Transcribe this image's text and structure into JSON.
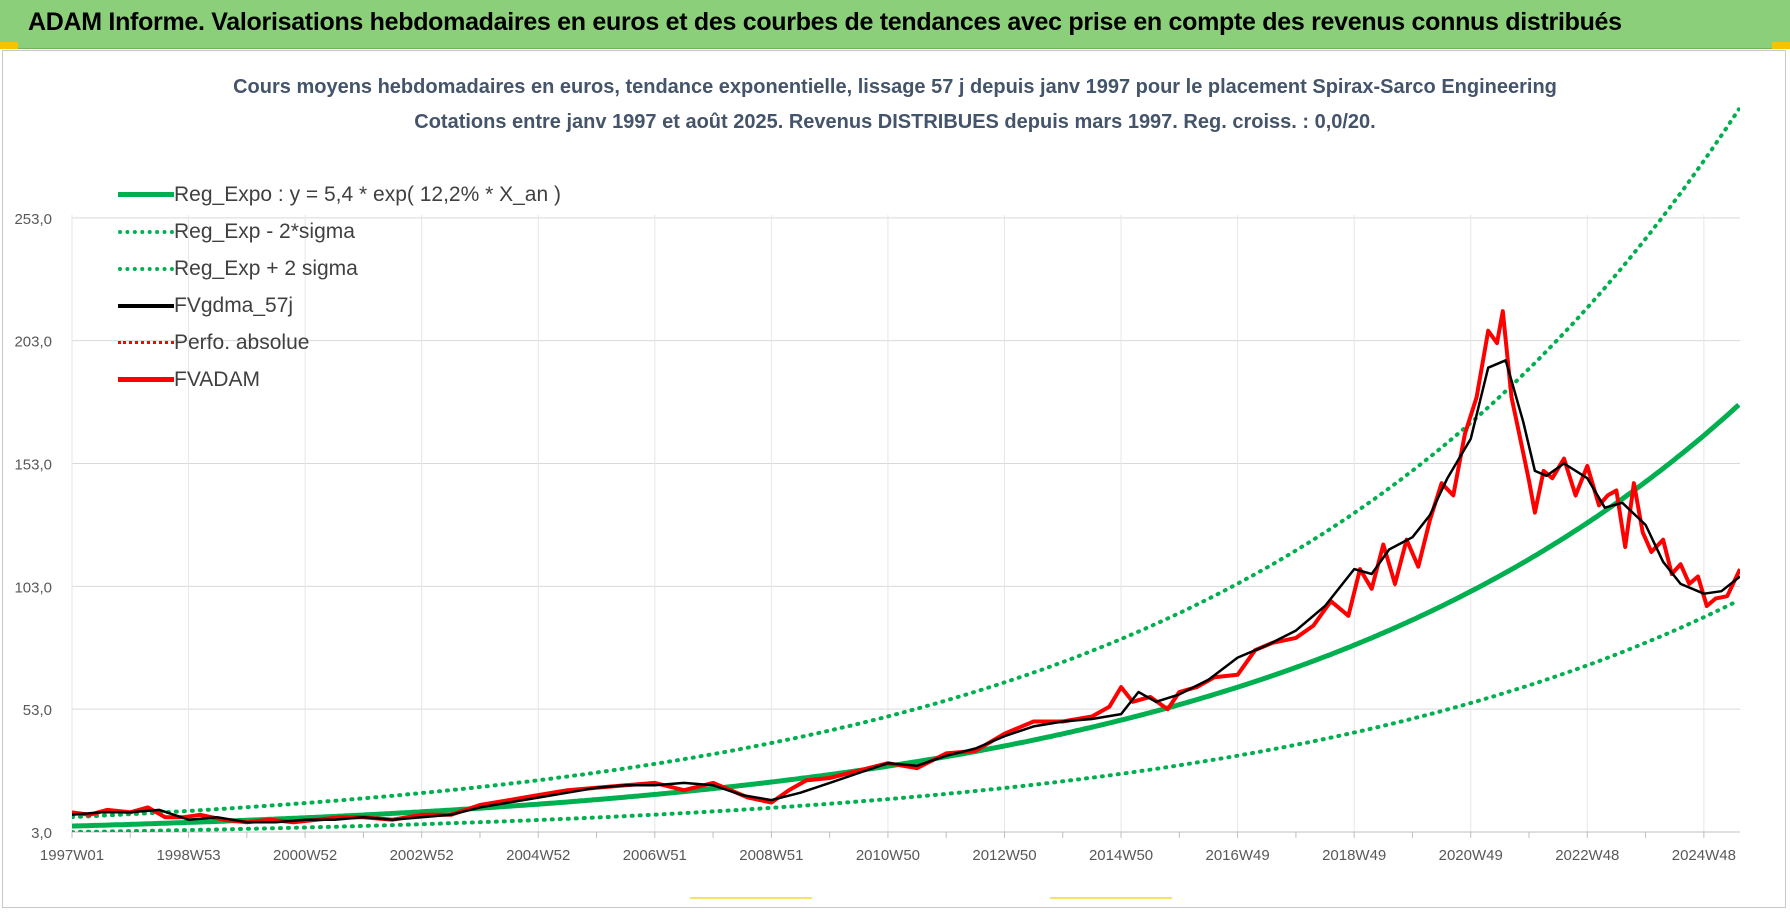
{
  "header": {
    "title": "ADAM Informe. Valorisations hebdomadaires en euros et des courbes de tendances avec prise en compte des revenus connus distribués"
  },
  "chart_data": {
    "type": "line",
    "title": "Cours moyens hebdomadaires en euros, tendance exponentielle, lissage 57 j depuis janv 1997 pour le placement Spirax-Sarco Engineering",
    "subtitle": "Cotations entre janv 1997 et août 2025. Revenus DISTRIBUES depuis mars 1997. Reg. croiss. : 0,0/20.",
    "xlabel": "",
    "ylabel": "",
    "ylim": [
      3,
      303
    ],
    "yticks": [
      "3,0",
      "53,0",
      "103,0",
      "153,0",
      "203,0",
      "253,0"
    ],
    "ytick_values": [
      3,
      53,
      103,
      153,
      203,
      253
    ],
    "xticks": [
      "1997W01",
      "1998W53",
      "2000W52",
      "2002W52",
      "2004W52",
      "2006W51",
      "2008W51",
      "2010W50",
      "2012W50",
      "2014W50",
      "2016W49",
      "2018W49",
      "2020W49",
      "2022W48",
      "2024W48"
    ],
    "xtick_years": [
      1997.0,
      1999.0,
      2001.0,
      2003.0,
      2005.0,
      2007.0,
      2009.0,
      2011.0,
      2013.0,
      2015.0,
      2017.0,
      2019.0,
      2021.0,
      2023.0,
      2025.0
    ],
    "xlim": [
      1997.0,
      2025.62
    ],
    "grid": true,
    "legend_position": "top-left",
    "colors": {
      "green": "#00b050",
      "black": "#000000",
      "red": "#ff0000"
    },
    "series": [
      {
        "name": "Reg_Expo : y = 5,4 * exp( 12,2% *  X_an )",
        "style": "solid-green",
        "formula": {
          "a": 5.4,
          "b": 0.122,
          "factor": 1.0
        }
      },
      {
        "name": "Reg_Exp - 2*sigma",
        "style": "dot-green",
        "formula": {
          "a": 5.4,
          "b": 0.122,
          "factor": 0.55
        }
      },
      {
        "name": "Reg_Exp + 2 sigma",
        "style": "dot-green",
        "formula": {
          "a": 5.4,
          "b": 0.122,
          "factor": 1.68
        }
      },
      {
        "name": "FVgdma_57j",
        "style": "solid-black",
        "x": [
          1997.0,
          1997.5,
          1998.0,
          1998.5,
          1999.0,
          1999.5,
          2000.0,
          2000.5,
          2001.0,
          2001.5,
          2002.0,
          2002.5,
          2003.0,
          2003.5,
          2004.0,
          2004.5,
          2005.0,
          2005.5,
          2006.0,
          2006.5,
          2007.0,
          2007.5,
          2008.0,
          2008.5,
          2009.0,
          2009.5,
          2010.0,
          2010.5,
          2011.0,
          2011.5,
          2012.0,
          2012.5,
          2013.0,
          2013.5,
          2014.0,
          2014.5,
          2015.0,
          2015.3,
          2015.6,
          2016.0,
          2016.5,
          2017.0,
          2017.5,
          2018.0,
          2018.5,
          2019.0,
          2019.3,
          2019.6,
          2020.0,
          2020.3,
          2020.6,
          2021.0,
          2021.3,
          2021.6,
          2021.9,
          2022.1,
          2022.3,
          2022.6,
          2023.0,
          2023.3,
          2023.6,
          2024.0,
          2024.3,
          2024.6,
          2025.0,
          2025.3,
          2025.62
        ],
        "values": [
          10,
          11,
          11,
          12,
          8,
          9,
          7,
          7,
          8,
          8,
          9,
          8,
          9,
          10,
          13,
          15,
          17,
          19,
          21,
          22,
          22,
          23,
          22,
          18,
          16,
          19,
          23,
          27,
          31,
          30,
          34,
          37,
          42,
          46,
          48,
          49,
          51,
          60,
          56,
          59,
          65,
          74,
          79,
          85,
          95,
          110,
          108,
          118,
          123,
          132,
          147,
          163,
          192,
          195,
          170,
          150,
          148,
          153,
          147,
          135,
          137,
          128,
          113,
          104,
          100,
          101,
          107
        ]
      },
      {
        "name": "Perfo. absolue",
        "style": "dot-red",
        "same_as": "FVADAM"
      },
      {
        "name": "FVADAM",
        "style": "solid-red",
        "x": [
          1997.0,
          1997.3,
          1997.6,
          1998.0,
          1998.3,
          1998.6,
          1998.9,
          1999.2,
          1999.6,
          2000.0,
          2000.4,
          2000.8,
          2001.2,
          2001.6,
          2002.0,
          2002.5,
          2003.0,
          2003.5,
          2004.0,
          2004.5,
          2005.0,
          2005.5,
          2006.0,
          2006.5,
          2007.0,
          2007.5,
          2008.0,
          2008.3,
          2008.6,
          2009.0,
          2009.3,
          2009.6,
          2010.0,
          2010.5,
          2011.0,
          2011.5,
          2012.0,
          2012.5,
          2013.0,
          2013.5,
          2014.0,
          2014.5,
          2014.8,
          2015.0,
          2015.2,
          2015.5,
          2015.8,
          2016.0,
          2016.3,
          2016.6,
          2017.0,
          2017.3,
          2017.6,
          2018.0,
          2018.3,
          2018.6,
          2018.9,
          2019.1,
          2019.3,
          2019.5,
          2019.7,
          2019.9,
          2020.1,
          2020.3,
          2020.5,
          2020.7,
          2020.9,
          2021.1,
          2021.3,
          2021.45,
          2021.55,
          2021.7,
          2021.85,
          2022.0,
          2022.1,
          2022.25,
          2022.4,
          2022.6,
          2022.8,
          2023.0,
          2023.2,
          2023.35,
          2023.5,
          2023.65,
          2023.8,
          2023.95,
          2024.1,
          2024.3,
          2024.45,
          2024.6,
          2024.75,
          2024.9,
          2025.05,
          2025.2,
          2025.4,
          2025.62
        ],
        "values": [
          11,
          10,
          12,
          11,
          13,
          9,
          9,
          10,
          8,
          7,
          8,
          7,
          8,
          9,
          9,
          8,
          10,
          10,
          14,
          16,
          18,
          20,
          21,
          22,
          23,
          20,
          23,
          20,
          17,
          15,
          20,
          24,
          25,
          28,
          31,
          29,
          35,
          36,
          43,
          48,
          48,
          50,
          54,
          62,
          56,
          58,
          53,
          60,
          62,
          66,
          67,
          77,
          80,
          82,
          87,
          97,
          91,
          110,
          102,
          120,
          104,
          122,
          111,
          130,
          145,
          140,
          165,
          180,
          207,
          202,
          215,
          180,
          163,
          146,
          133,
          150,
          147,
          155,
          140,
          152,
          136,
          140,
          142,
          119,
          145,
          125,
          117,
          122,
          108,
          112,
          104,
          107,
          95,
          98,
          99,
          110
        ]
      }
    ]
  }
}
